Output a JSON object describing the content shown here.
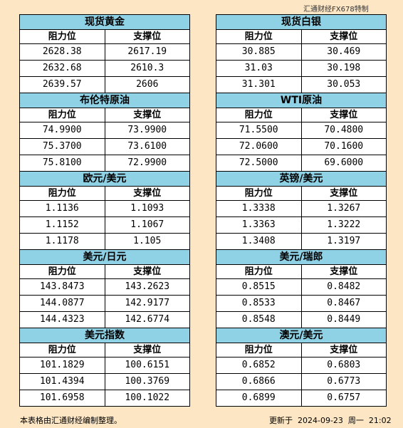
{
  "watermark": "汇通财经FX678特制",
  "headers": {
    "resistance": "阻力位",
    "support": "支撑位"
  },
  "left": [
    {
      "title": "现货黄金",
      "rows": [
        [
          "2628.38",
          "2617.19"
        ],
        [
          "2632.68",
          "2610.3"
        ],
        [
          "2639.57",
          "2606"
        ]
      ]
    },
    {
      "title": "布伦特原油",
      "rows": [
        [
          "74.9900",
          "73.9900"
        ],
        [
          "75.3700",
          "73.6100"
        ],
        [
          "75.8100",
          "72.9900"
        ]
      ]
    },
    {
      "title": "欧元/美元",
      "rows": [
        [
          "1.1136",
          "1.1093"
        ],
        [
          "1.1152",
          "1.1067"
        ],
        [
          "1.1178",
          "1.105"
        ]
      ]
    },
    {
      "title": "美元/日元",
      "rows": [
        [
          "143.8473",
          "143.2623"
        ],
        [
          "144.0877",
          "142.9177"
        ],
        [
          "144.4323",
          "142.6774"
        ]
      ]
    },
    {
      "title": "美元指数",
      "rows": [
        [
          "101.1829",
          "100.6151"
        ],
        [
          "101.4394",
          "100.3769"
        ],
        [
          "101.6958",
          "100.1022"
        ]
      ]
    }
  ],
  "right": [
    {
      "title": "现货白银",
      "rows": [
        [
          "30.885",
          "30.469"
        ],
        [
          "31.03",
          "30.198"
        ],
        [
          "31.301",
          "30.053"
        ]
      ]
    },
    {
      "title": "WTI原油",
      "rows": [
        [
          "71.5500",
          "70.4800"
        ],
        [
          "72.0600",
          "70.1600"
        ],
        [
          "72.5000",
          "69.6000"
        ]
      ]
    },
    {
      "title": "英镑/美元",
      "rows": [
        [
          "1.3338",
          "1.3267"
        ],
        [
          "1.3363",
          "1.3222"
        ],
        [
          "1.3408",
          "1.3197"
        ]
      ]
    },
    {
      "title": "美元/瑞郎",
      "rows": [
        [
          "0.8515",
          "0.8482"
        ],
        [
          "0.8533",
          "0.8467"
        ],
        [
          "0.8548",
          "0.8449"
        ]
      ]
    },
    {
      "title": "澳元/美元",
      "rows": [
        [
          "0.6852",
          "0.6803"
        ],
        [
          "0.6866",
          "0.6773"
        ],
        [
          "0.6899",
          "0.6757"
        ]
      ]
    }
  ],
  "footer": {
    "note": "本表格由汇通财经编制整理。",
    "updated": "更新于  2024-09-23  周一  21:02"
  }
}
